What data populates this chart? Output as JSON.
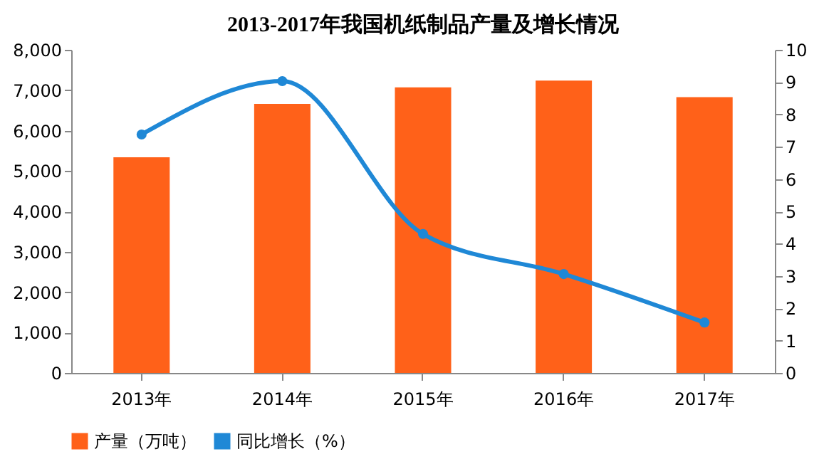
{
  "chart_data": {
    "type": "bar",
    "title": "2013-2017年我国机纸制品产量及增长情况",
    "categories": [
      "2013年",
      "2014年",
      "2015年",
      "2016年",
      "2017年"
    ],
    "series": [
      {
        "name": "产量（万吨）",
        "color": "#ff6119",
        "values": [
          5340,
          6660,
          7070,
          7240,
          6830
        ]
      },
      {
        "name": "同比增长（%）",
        "type": "line",
        "axis": "y2",
        "color": "#1f88d6",
        "values": [
          7.38,
          9.03,
          4.3,
          3.06,
          1.56
        ],
        "marker": "circle"
      }
    ],
    "ylim": [
      0,
      8000
    ],
    "yticks": [
      0,
      {
        "value": 1000,
        "label": "1,000"
      },
      {
        "value": 2000,
        "label": "2,000"
      },
      {
        "value": 3000,
        "label": "3,000"
      },
      {
        "value": 4000,
        "label": "4,000"
      },
      {
        "value": 5000,
        "label": "5,000"
      },
      {
        "value": 6000,
        "label": "6,000"
      },
      {
        "value": 7000,
        "label": "7,000"
      },
      {
        "value": 8000,
        "label": "8,000"
      }
    ],
    "y2lim": [
      0,
      10
    ],
    "y2ticks": [
      0,
      1,
      2,
      3,
      4,
      5,
      6,
      7,
      8,
      9,
      10
    ],
    "grid": false,
    "legend": "bottom"
  }
}
